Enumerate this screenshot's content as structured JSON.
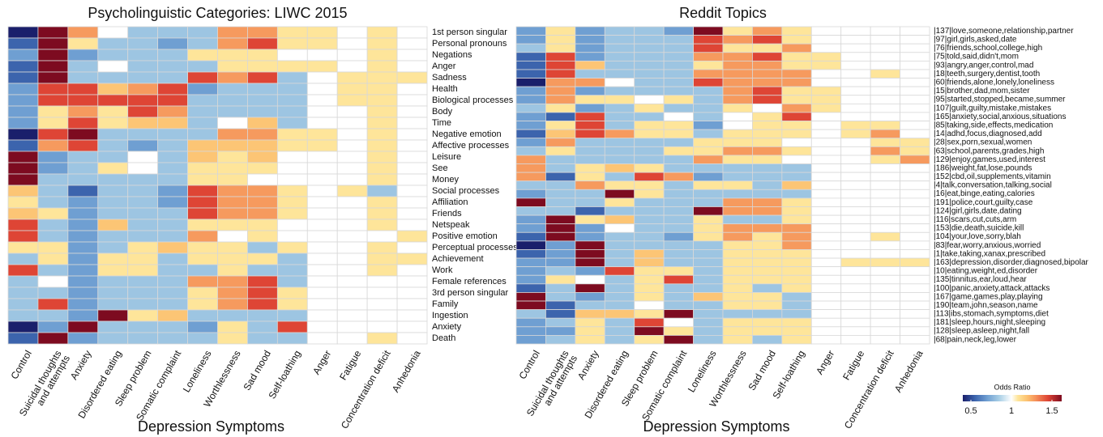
{
  "chart_data": [
    {
      "type": "heatmap",
      "title": "Psycholinguistic Categories: LIWC 2015",
      "xlabel": "Depression Symptoms",
      "x": [
        "Control",
        "Suicidal thoughts\nand attempts",
        "Anxiety",
        "Disordered eating",
        "Sleep problem",
        "Somatic complaint",
        "Loneliness",
        "Worthlessness",
        "Sad mood",
        "Self-loathing",
        "Anger",
        "Fatigue",
        "Concentration deficit",
        "Anhedonia"
      ],
      "y": [
        "1st person singular",
        "Personal pronouns",
        "Negations",
        "Anger",
        "Sadness",
        "Health",
        "Biological processes",
        "Body",
        "Time",
        "Negative emotion",
        "Affective processes",
        "Leisure",
        "See",
        "Money",
        "Social processes",
        "Affiliation",
        "Friends",
        "Netspeak",
        "Positive emotion",
        "Perceptual processes",
        "Achievement",
        "Work",
        "Female references",
        "3rd person singular",
        "Family",
        "Ingestion",
        "Anxiety",
        "Death"
      ],
      "values": [
        [
          0.4,
          1.65,
          1.28,
          1,
          0.82,
          0.82,
          0.82,
          1.28,
          1.28,
          1.08,
          1.08,
          1,
          1.08,
          1
        ],
        [
          0.55,
          1.65,
          1.08,
          0.82,
          0.82,
          0.7,
          0.82,
          1.28,
          1.45,
          1.08,
          1.08,
          1,
          1.08,
          1
        ],
        [
          0.7,
          1.65,
          0.7,
          0.82,
          0.82,
          0.82,
          1.08,
          1.08,
          1.08,
          1,
          1,
          1,
          1.08,
          1
        ],
        [
          0.55,
          1.65,
          0.82,
          1,
          0.82,
          0.82,
          0.82,
          1.08,
          1.08,
          1.08,
          1.08,
          1,
          1.08,
          1
        ],
        [
          0.55,
          1.65,
          0.82,
          0.82,
          0.82,
          0.82,
          1.45,
          1.28,
          1.45,
          0.82,
          1,
          1.08,
          1.08,
          1.08
        ],
        [
          0.7,
          1.45,
          1.45,
          1.18,
          1.28,
          1.45,
          0.7,
          0.82,
          0.82,
          0.82,
          1,
          1.08,
          1.08,
          1
        ],
        [
          0.7,
          1.45,
          1.45,
          1.45,
          1.45,
          1.45,
          0.82,
          0.82,
          0.82,
          0.82,
          1,
          1.08,
          1.08,
          1
        ],
        [
          0.7,
          1.08,
          1.28,
          1.08,
          1.45,
          1.28,
          0.82,
          0.82,
          0.82,
          0.82,
          1,
          1,
          1.08,
          1
        ],
        [
          0.7,
          1.08,
          1.45,
          1.08,
          1.18,
          1.18,
          0.82,
          1,
          1.18,
          0.82,
          1,
          1,
          1.08,
          1
        ],
        [
          0.4,
          1.45,
          1.65,
          0.82,
          0.82,
          0.82,
          0.82,
          1.28,
          1.28,
          1.08,
          1.08,
          1,
          1.08,
          1
        ],
        [
          0.55,
          1.28,
          1.45,
          0.82,
          0.7,
          0.82,
          1.18,
          1.18,
          1.18,
          1.08,
          1.08,
          1,
          1.08,
          1
        ],
        [
          1.65,
          0.7,
          0.82,
          0.82,
          1,
          0.82,
          1.18,
          1.08,
          1.18,
          1,
          1,
          1,
          1.08,
          1
        ],
        [
          1.65,
          0.7,
          0.82,
          1.08,
          1,
          0.82,
          1.08,
          1.08,
          1.08,
          1,
          1,
          1,
          1.08,
          1
        ],
        [
          1.65,
          0.82,
          0.82,
          0.82,
          0.82,
          0.82,
          1.08,
          1.08,
          1,
          1,
          1,
          1,
          1.08,
          1
        ],
        [
          1.18,
          0.82,
          0.55,
          0.82,
          0.82,
          0.7,
          1.45,
          1.28,
          1.28,
          1.08,
          1,
          1.08,
          0.82,
          1
        ],
        [
          1.08,
          0.82,
          0.7,
          0.82,
          0.82,
          0.7,
          1.45,
          1.28,
          1.28,
          1.08,
          1,
          1,
          1.08,
          1
        ],
        [
          1.18,
          1.08,
          0.7,
          0.82,
          0.82,
          0.82,
          1.45,
          1.28,
          1.28,
          1.08,
          1,
          1,
          1.08,
          1
        ],
        [
          1.45,
          0.82,
          0.7,
          1.18,
          0.82,
          0.82,
          1.08,
          1.08,
          1.08,
          1,
          1,
          1,
          1.08,
          1
        ],
        [
          1.45,
          0.82,
          0.7,
          0.82,
          0.82,
          0.82,
          1.28,
          1,
          1.08,
          1,
          1,
          1,
          1,
          1.08
        ],
        [
          1.08,
          1.08,
          0.7,
          0.82,
          1.08,
          1.18,
          1.08,
          1.08,
          0.82,
          1.08,
          1,
          1,
          1.08,
          1
        ],
        [
          0.82,
          1.08,
          0.7,
          1.08,
          1.08,
          0.82,
          1.08,
          1.08,
          1.08,
          0.82,
          1,
          1,
          1.08,
          1.08
        ],
        [
          1.45,
          0.82,
          0.7,
          1.08,
          1.08,
          0.82,
          0.82,
          1.08,
          0.82,
          0.82,
          1,
          1,
          1.08,
          1
        ],
        [
          0.82,
          1,
          0.7,
          0.82,
          0.82,
          0.82,
          1.28,
          1.28,
          1.45,
          0.82,
          1,
          1,
          1,
          1
        ],
        [
          0.82,
          0.82,
          0.7,
          0.82,
          0.82,
          0.82,
          1.08,
          1.28,
          1.45,
          1.08,
          1,
          1,
          1,
          1
        ],
        [
          0.82,
          1.45,
          0.7,
          0.82,
          0.82,
          0.82,
          1.08,
          1.28,
          1.45,
          1.08,
          1,
          1,
          1,
          1
        ],
        [
          0.82,
          0.82,
          0.7,
          1.65,
          1.08,
          1.18,
          0.82,
          0.82,
          0.82,
          0.82,
          1,
          1,
          1,
          1
        ],
        [
          0.4,
          0.7,
          1.65,
          0.82,
          0.82,
          0.82,
          0.7,
          1.08,
          0.82,
          1.45,
          1,
          1,
          1,
          1
        ],
        [
          0.55,
          1.65,
          0.7,
          0.82,
          0.82,
          0.82,
          0.82,
          1.08,
          0.82,
          0.82,
          1,
          1,
          1.08,
          1
        ]
      ],
      "colorscale": [
        [
          0.4,
          "#1a1f6b"
        ],
        [
          0.55,
          "#3c64ad"
        ],
        [
          0.7,
          "#6f9fd2"
        ],
        [
          0.85,
          "#a9cfe6"
        ],
        [
          1,
          "#ffffff"
        ],
        [
          1.08,
          "#fee59a"
        ],
        [
          1.2,
          "#fcbf6e"
        ],
        [
          1.3,
          "#f5915a"
        ],
        [
          1.45,
          "#de4535"
        ],
        [
          1.62,
          "#7d0b20"
        ]
      ]
    },
    {
      "type": "heatmap",
      "title": "Reddit Topics",
      "xlabel": "Depression Symptoms",
      "x": [
        "Control",
        "Suicidal thoughts\nand attempts",
        "Anxiety",
        "Disordered eating",
        "Sleep problem",
        "Somatic complaint",
        "Loneliness",
        "Worthlessness",
        "Sad mood",
        "Self-loathing",
        "Anger",
        "Fatigue",
        "Concentration deficit",
        "Anhedonia"
      ],
      "y": [
        "|137|love,someone,relationship,partner",
        "|97|girl,girls,asked,date",
        "|76|friends,school,college,high",
        "|75|told,said,didn't,mom",
        "|93|angry,anger,control,mad",
        "|18|teeth,surgery,dentist,tooth",
        "|60|friends,alone,lonely,loneliness",
        "|15|brother,dad,mom,sister",
        "|95|started,stopped,became,summer",
        "|107|guilt,guilty,mistake,mistakes",
        "|165|anxiety,social,anxious,situations",
        "|85|taking,side,effects,medication",
        "|14|adhd,focus,diagnosed,add",
        "|28|sex,porn,sexual,women",
        "|63|school,parents,grades,high",
        "|129|enjoy,games,used,interest",
        "|186|weight,fat,lose,pounds",
        "|152|cbd,oil,supplements,vitamin",
        "|4|talk,conversation,talking,social",
        "|16|eat,binge,eating,calories",
        "|191|police,court,guilty,case",
        "|124|girl,girls,date,dating",
        "|116|scars,cut,cuts,arm",
        "|153|die,death,suicide,kill",
        "|104|your,love,sorry,blah",
        "|83|fear,worry,anxious,worried",
        "|1|take,taking,xanax,prescribed",
        "|163|depression,disorder,diagnosed,bipolar",
        "|10|eating,weight,ed,disorder",
        "|135|tinnitus,ear,loud,hear",
        "|100|panic,anxiety,attack,attacks",
        "|167|game,games,play,playing",
        "|190|team,john,season,name",
        "|113|ibs,stomach,symptoms,diet",
        "|181|sleep,hours,night,sleeping",
        "|128|sleep,asleep,night,fall",
        "|68|pain,neck,leg,lower"
      ],
      "values": [
        [
          0.7,
          1.08,
          0.7,
          0.82,
          0.82,
          0.7,
          1.65,
          1.08,
          1.28,
          1.08,
          1,
          1,
          1,
          1
        ],
        [
          0.7,
          1.08,
          0.7,
          0.82,
          0.82,
          0.82,
          1.45,
          1.28,
          1.45,
          1.08,
          1,
          1,
          1,
          1
        ],
        [
          0.82,
          1.08,
          0.7,
          0.82,
          0.82,
          0.82,
          1.45,
          1.08,
          1.08,
          1.28,
          1,
          1,
          1,
          1
        ],
        [
          0.55,
          1.45,
          0.7,
          0.82,
          0.82,
          0.82,
          1.28,
          1.28,
          1.45,
          1.08,
          1.08,
          1,
          1,
          1
        ],
        [
          0.55,
          1.45,
          1.18,
          0.82,
          0.82,
          0.82,
          1.08,
          1.28,
          1.28,
          1.08,
          1.08,
          1,
          1,
          1
        ],
        [
          0.55,
          1.45,
          0.82,
          0.82,
          0.82,
          0.82,
          1.28,
          1.28,
          1.28,
          1.28,
          1,
          1,
          1.08,
          1
        ],
        [
          0.4,
          1.28,
          1.28,
          1,
          0.82,
          0.82,
          1.45,
          1.28,
          1.28,
          1.28,
          1,
          1,
          1,
          1
        ],
        [
          0.7,
          1.28,
          0.7,
          0.82,
          0.82,
          0.82,
          0.82,
          1.28,
          1.45,
          1.08,
          1.08,
          1,
          1,
          1
        ],
        [
          0.7,
          1.28,
          1.08,
          1.08,
          1,
          1.08,
          0.82,
          1.28,
          1.45,
          1.08,
          1.08,
          1,
          1,
          1
        ],
        [
          0.82,
          1.08,
          0.7,
          0.82,
          1.08,
          0.82,
          0.82,
          1.08,
          1,
          1.28,
          1.08,
          1,
          1,
          1
        ],
        [
          0.7,
          0.55,
          1.45,
          0.82,
          0.82,
          1,
          0.82,
          1,
          1.08,
          1.45,
          1,
          1,
          1,
          1
        ],
        [
          0.7,
          1.08,
          1.45,
          0.82,
          1.08,
          1.08,
          0.7,
          1,
          1.08,
          1.08,
          1,
          1.08,
          1.08,
          1
        ],
        [
          0.55,
          1.18,
          1.45,
          1.28,
          1.08,
          1.08,
          0.82,
          1.08,
          1.08,
          1.08,
          1,
          1.08,
          1.28,
          1
        ],
        [
          0.7,
          1.28,
          0.82,
          0.82,
          0.82,
          0.82,
          1.08,
          1.08,
          1.08,
          1,
          1,
          1,
          1.08,
          1.08
        ],
        [
          0.82,
          1.08,
          0.82,
          0.82,
          0.82,
          1.08,
          1.08,
          1.28,
          1.28,
          1.08,
          1,
          1,
          1.28,
          1.08
        ],
        [
          1.28,
          0.82,
          0.82,
          0.82,
          0.82,
          0.82,
          1.28,
          1.08,
          1.08,
          1,
          1,
          1,
          1.08,
          1.28
        ],
        [
          1.28,
          0.82,
          1.08,
          1.18,
          1.08,
          0.82,
          0.82,
          0.82,
          0.82,
          0.82,
          1,
          1,
          1,
          1
        ],
        [
          1.28,
          0.55,
          1.08,
          0.82,
          1.45,
          1.28,
          0.7,
          0.82,
          0.82,
          0.82,
          1,
          1,
          1,
          1
        ],
        [
          0.82,
          0.82,
          1.28,
          1.08,
          1.08,
          0.82,
          1.08,
          1.08,
          0.82,
          1.18,
          1,
          1,
          1,
          1
        ],
        [
          0.7,
          0.82,
          0.82,
          1.65,
          1.08,
          0.82,
          0.82,
          0.82,
          0.82,
          0.82,
          1,
          1,
          1,
          1
        ],
        [
          1.65,
          0.82,
          0.82,
          1.08,
          0.82,
          0.82,
          0.82,
          1.28,
          1.28,
          1.08,
          1,
          1,
          1,
          1
        ],
        [
          0.82,
          0.82,
          0.55,
          0.82,
          0.82,
          0.82,
          1.65,
          1.28,
          1.28,
          1.08,
          1,
          1,
          1,
          1
        ],
        [
          0.7,
          1.65,
          1.08,
          1.18,
          0.82,
          0.82,
          1.08,
          0.82,
          0.82,
          1.08,
          1,
          1,
          1,
          1
        ],
        [
          0.7,
          1.65,
          0.7,
          1,
          0.82,
          0.82,
          1.08,
          1.28,
          1.28,
          1.28,
          1,
          1,
          1,
          1
        ],
        [
          0.55,
          1.65,
          0.7,
          0.82,
          0.82,
          0.7,
          1.08,
          1.28,
          1.08,
          1.28,
          1,
          1,
          1.08,
          1
        ],
        [
          0.4,
          0.7,
          1.65,
          0.82,
          0.82,
          0.82,
          0.82,
          1.08,
          1.08,
          1.28,
          1,
          1,
          1,
          1
        ],
        [
          0.55,
          0.7,
          1.65,
          0.82,
          1.18,
          0.82,
          0.82,
          1.08,
          1.08,
          1.08,
          1,
          1,
          1,
          1
        ],
        [
          0.7,
          0.7,
          1.65,
          0.82,
          1.18,
          0.82,
          0.82,
          1.08,
          1.08,
          1.08,
          1,
          1.08,
          1.08,
          1.08
        ],
        [
          0.7,
          0.82,
          0.7,
          1.45,
          1.08,
          1.08,
          0.82,
          1.08,
          1.08,
          1.08,
          1,
          1,
          1,
          1
        ],
        [
          0.7,
          1.08,
          1,
          0.82,
          1.08,
          1.45,
          0.82,
          1.08,
          1.08,
          1.08,
          1,
          1,
          1,
          1
        ],
        [
          0.55,
          0.82,
          1.65,
          0.82,
          1.08,
          0.82,
          0.82,
          1.08,
          0.82,
          1.08,
          1,
          1,
          1,
          1
        ],
        [
          1.65,
          0.82,
          0.7,
          0.82,
          1.08,
          0.82,
          1.18,
          1.08,
          1.08,
          0.82,
          1,
          1,
          1,
          1
        ],
        [
          1.65,
          0.55,
          0.82,
          0.82,
          1,
          0.82,
          0.82,
          1.08,
          1.08,
          0.82,
          1,
          1,
          1,
          1
        ],
        [
          0.82,
          0.55,
          1.18,
          1.18,
          1.08,
          1.65,
          0.82,
          0.82,
          0.82,
          0.82,
          1,
          1,
          1,
          1
        ],
        [
          0.7,
          0.82,
          1.08,
          0.82,
          1.45,
          1,
          0.82,
          1.08,
          1.08,
          1.08,
          1,
          1,
          1,
          1
        ],
        [
          0.7,
          0.7,
          1.08,
          0.82,
          1.65,
          1.08,
          0.82,
          1.08,
          1.08,
          1.08,
          1,
          1,
          1,
          1
        ],
        [
          0.7,
          0.82,
          1.08,
          0.82,
          1.08,
          1.65,
          0.82,
          1.08,
          0.82,
          1.08,
          1,
          1,
          1,
          1
        ]
      ],
      "colorscale": [
        [
          0.4,
          "#1a1f6b"
        ],
        [
          0.55,
          "#3c64ad"
        ],
        [
          0.7,
          "#6f9fd2"
        ],
        [
          0.85,
          "#a9cfe6"
        ],
        [
          1,
          "#ffffff"
        ],
        [
          1.08,
          "#fee59a"
        ],
        [
          1.2,
          "#fcbf6e"
        ],
        [
          1.3,
          "#f5915a"
        ],
        [
          1.45,
          "#de4535"
        ],
        [
          1.62,
          "#7d0b20"
        ]
      ],
      "colorbar": {
        "title": "Odds Ratio",
        "zlim": [
          0.4,
          1.62
        ],
        "ticks": [
          0.5,
          1,
          1.5
        ]
      }
    }
  ]
}
